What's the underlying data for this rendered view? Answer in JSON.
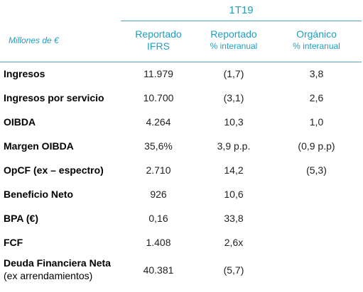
{
  "header": {
    "period": "1T19",
    "units": "Millones de €",
    "columns": [
      {
        "line1": "Reportado",
        "line2": "IFRS"
      },
      {
        "line1": "Reportado",
        "line2": "% interanual"
      },
      {
        "line1": "Orgánico",
        "line2": "% interanual"
      }
    ]
  },
  "rows": [
    {
      "label": "Ingresos",
      "ifrs": "11.979",
      "yoy": "(1,7)",
      "organic": "3,8"
    },
    {
      "label": "Ingresos por servicio",
      "ifrs": "10.700",
      "yoy": "(3,1)",
      "organic": "2,6"
    },
    {
      "label": "OIBDA",
      "ifrs": "4.264",
      "yoy": "10,3",
      "organic": "1,0"
    },
    {
      "label": "Margen OIBDA",
      "ifrs": "35,6%",
      "yoy": "3,9 p.p.",
      "organic": "(0,9 p.p)"
    },
    {
      "label": "OpCF (ex – espectro)",
      "ifrs": "2.710",
      "yoy": "14,2",
      "organic": "(5,3)"
    },
    {
      "label": "Beneficio Neto",
      "ifrs": "926",
      "yoy": "10,6",
      "organic": ""
    },
    {
      "label": "BPA (€)",
      "ifrs": "0,16",
      "yoy": "33,8",
      "organic": ""
    },
    {
      "label": "FCF",
      "ifrs": "1.408",
      "yoy": "2,6x",
      "organic": ""
    },
    {
      "label": "Deuda Financiera Neta",
      "sublabel": "(ex arrendamientos)",
      "ifrs": "40.381",
      "yoy": "(5,7)",
      "organic": ""
    }
  ]
}
